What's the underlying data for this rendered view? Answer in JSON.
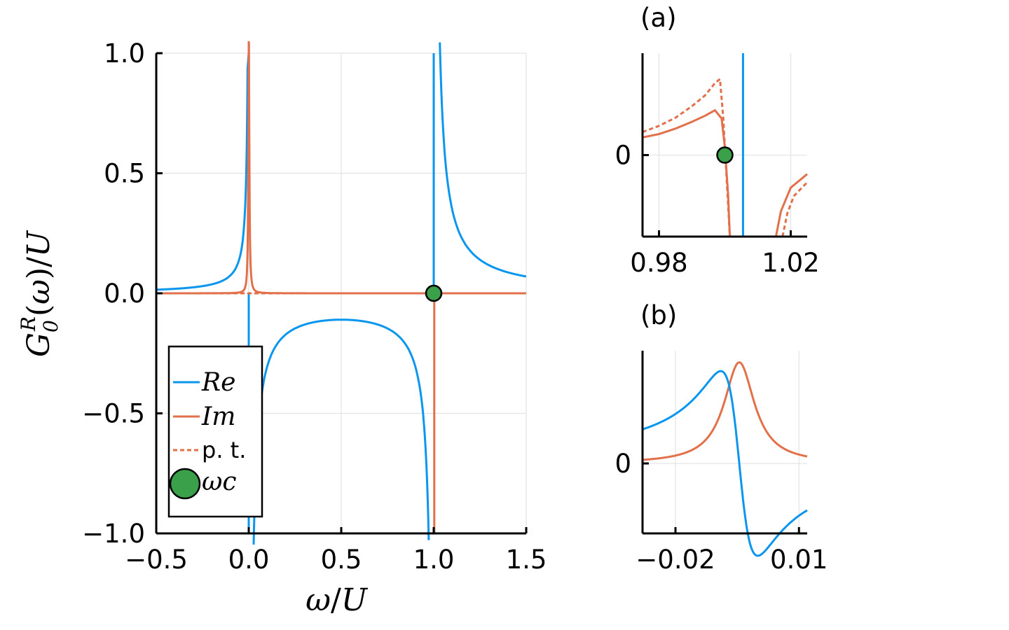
{
  "colors": {
    "re": "#0a96ee",
    "im": "#e2704a",
    "marker": "#3aa04a",
    "axis": "#000000",
    "grid": "#e3e3e3"
  },
  "chart_data": [
    {
      "id": "main",
      "type": "line",
      "title": "",
      "xlabel": "ω/U",
      "ylabel": "G0R(ω)/U",
      "xlim": [
        -0.5,
        1.5
      ],
      "ylim": [
        -1.0,
        1.0
      ],
      "xticks": [
        -0.5,
        0.0,
        0.5,
        1.0,
        1.5
      ],
      "xtick_labels": [
        "−0.5",
        "0.0",
        "0.5",
        "1.0",
        "1.5"
      ],
      "yticks": [
        -1.0,
        -0.5,
        0.0,
        0.5,
        1.0
      ],
      "ytick_labels": [
        "−1.0",
        "−0.5",
        "0.0",
        "0.5",
        "1.0"
      ],
      "grid": true,
      "legend": "bottom-left",
      "legend_entries": [
        "Re",
        "Im",
        "p. t.",
        "ωc"
      ],
      "series": [
        {
          "name": "Re",
          "style": "solid",
          "model": "two-pole",
          "poles": [
            0.0,
            1.0
          ],
          "weights": [
            0.5,
            0.5
          ],
          "broadening": 0.004
        },
        {
          "name": "Im",
          "style": "solid",
          "model": "peak",
          "center": 0.0,
          "width": 0.005
        },
        {
          "name": "p. t.",
          "style": "dotted"
        }
      ],
      "marker": {
        "name": "ωc",
        "x": 1.0,
        "y": 0.0
      }
    },
    {
      "id": "a",
      "panel_label": "(a)",
      "type": "line",
      "xlim": [
        0.975,
        1.025
      ],
      "xticks": [
        0.98,
        1.02
      ],
      "xtick_labels": [
        "0.98",
        "1.02"
      ],
      "yticks": [
        0
      ],
      "ytick_labels": [
        "0"
      ],
      "grid": true,
      "series": [
        {
          "name": "Re",
          "style": "solid",
          "x": [
            1.0055,
            1.0055
          ],
          "y": [
            1.5,
            -1.5
          ]
        },
        {
          "name": "Im",
          "style": "solid",
          "x": [
            0.975,
            0.98,
            0.985,
            0.99,
            0.994,
            0.997,
            0.999,
            1.0,
            1.001,
            1.0015
          ],
          "y": [
            0.26,
            0.31,
            0.39,
            0.49,
            0.58,
            0.66,
            0.54,
            0.12,
            -0.6,
            -1.2
          ]
        },
        {
          "name": "Im",
          "style": "solid",
          "x": [
            1.0155,
            1.017,
            1.02,
            1.025
          ],
          "y": [
            -1.2,
            -0.83,
            -0.48,
            -0.28
          ]
        },
        {
          "name": "p. t.",
          "style": "dotted",
          "x": [
            0.975,
            0.98,
            0.985,
            0.99,
            0.994,
            0.997,
            0.9985,
            0.9995,
            1.0005,
            1.0015
          ],
          "y": [
            0.34,
            0.43,
            0.55,
            0.72,
            0.88,
            1.06,
            1.12,
            0.55,
            -0.3,
            -1.2
          ]
        },
        {
          "name": "p. t.",
          "style": "dotted",
          "x": [
            1.0175,
            1.019,
            1.021,
            1.025
          ],
          "y": [
            -1.2,
            -0.85,
            -0.6,
            -0.4
          ]
        }
      ],
      "marker": {
        "name": "ωc",
        "x": 1.0,
        "y": 0.0
      }
    },
    {
      "id": "b",
      "panel_label": "(b)",
      "type": "line",
      "xlim": [
        -0.028,
        0.012
      ],
      "xticks": [
        -0.02,
        0.01
      ],
      "xtick_labels": [
        "−0.02",
        "0.01"
      ],
      "yticks": [
        0
      ],
      "ytick_labels": [
        "0"
      ],
      "grid": true,
      "series": [
        {
          "name": "Re",
          "style": "solid",
          "model": "lorentz-real",
          "center": -0.0045,
          "width": 0.0045
        },
        {
          "name": "Im",
          "style": "solid",
          "model": "lorentz-imag",
          "center": -0.0045,
          "width": 0.0045
        }
      ]
    }
  ]
}
